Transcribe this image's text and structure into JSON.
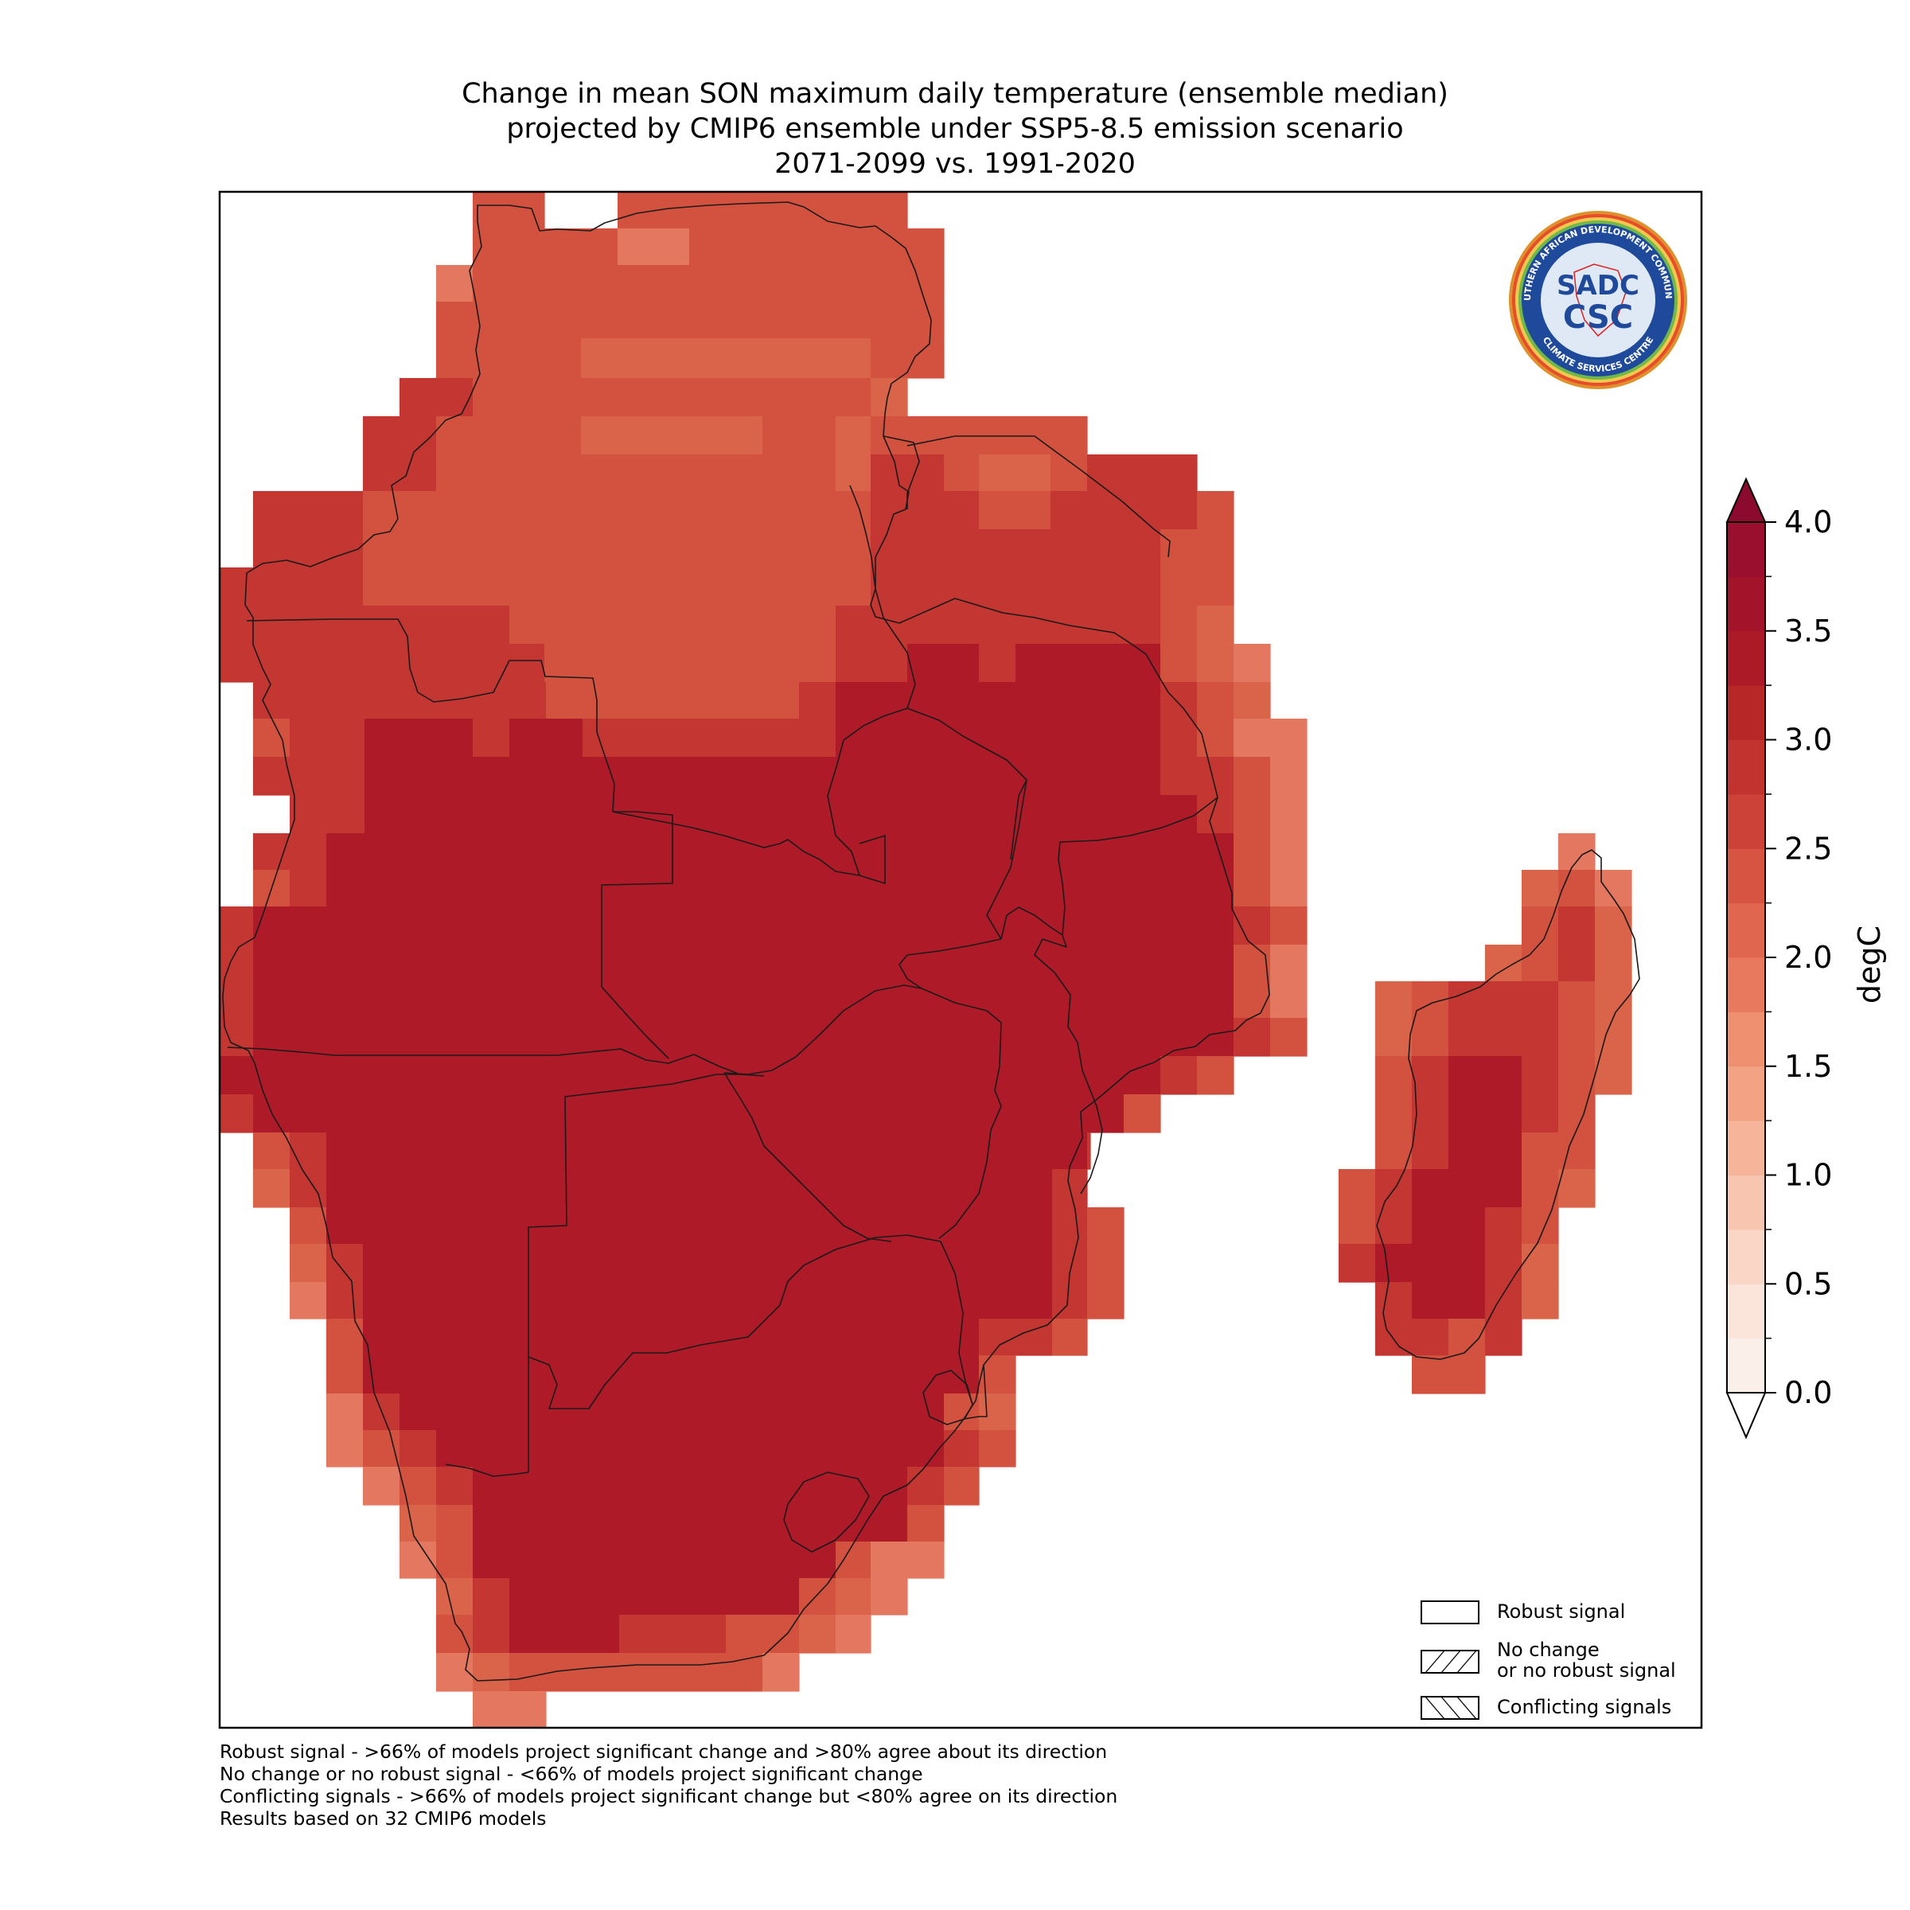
{
  "title": {
    "line1": "Change in mean SON maximum daily temperature (ensemble median)",
    "line2": "projected by CMIP6 ensemble under SSP5-8.5 emission scenario",
    "line3": "2071-2099 vs. 1991-2020"
  },
  "colorbar": {
    "label": "degC",
    "min": 0.0,
    "max": 4.0,
    "step": 0.25,
    "extend": "both",
    "ticks": [
      "0.0",
      "0.5",
      "1.0",
      "1.5",
      "2.0",
      "2.5",
      "3.0",
      "3.5",
      "4.0"
    ],
    "colors": [
      "#fbefea",
      "#fbe4da",
      "#fad6c6",
      "#f8c6b0",
      "#f6b59a",
      "#f3a384",
      "#ef9070",
      "#e8795e",
      "#e1664f",
      "#d75443",
      "#cc4238",
      "#c2332f",
      "#b82728",
      "#ad1a27",
      "#a3142b",
      "#9a0e2e"
    ]
  },
  "legend": {
    "robust": "Robust signal",
    "no_change_line1": "No change",
    "no_change_line2": "or no robust signal",
    "conflicting": "Conflicting signals"
  },
  "footnotes": {
    "line1": "Robust signal - >66% of models project significant change and >80% agree about its direction",
    "line2": "No change or no robust signal - <66% of models project significant change",
    "line3": "Conflicting signals - >66% of models project significant change but <80% agree on its direction",
    "line4": "Results based on 32 CMIP6 models"
  },
  "logo": {
    "top_text": "SOUTHERN AFRICAN DEVELOPMENT COMMUNITY",
    "bottom_text": "CLIMATE SERVICES CENTRE",
    "mark": "SADC",
    "abbrev": "CSC"
  },
  "map": {
    "variable": "mean SON maximum daily temperature change",
    "region": "Southern Africa (SADC)",
    "colors": {
      "c4": "#ae1a28",
      "c35": "#c33631",
      "c3": "#d3513f",
      "c28": "#d96449",
      "c25": "#e37760",
      "c2": "#ea9172"
    }
  }
}
